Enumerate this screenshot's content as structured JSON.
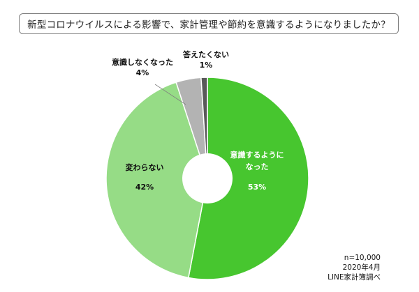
{
  "chart_data": {
    "type": "pie",
    "title": "新型コロナウイルスによる影響で、家計管理や節約を意識するようになりましたか？",
    "donut": true,
    "start": "12 o'clock, clockwise",
    "slices": [
      {
        "label_lines": [
          "意識するように",
          "なった"
        ],
        "value": 53,
        "value_label": "53%",
        "color": "#47c62f",
        "label_color": "#ffffff"
      },
      {
        "label_lines": [
          "変わらない"
        ],
        "value": 42,
        "value_label": "42%",
        "color": "#96dc86",
        "label_color": "#111111"
      },
      {
        "label_lines": [
          "意識しなくなった"
        ],
        "value": 4,
        "value_label": "4%",
        "color": "#b3b3b3",
        "label_color": "#111111"
      },
      {
        "label_lines": [
          "答えたくない"
        ],
        "value": 1,
        "value_label": "1%",
        "color": "#595959",
        "label_color": "#111111"
      }
    ]
  },
  "footnote": {
    "n": "n=10,000",
    "date": "2020年4月",
    "source": "LINE家計簿調べ"
  }
}
